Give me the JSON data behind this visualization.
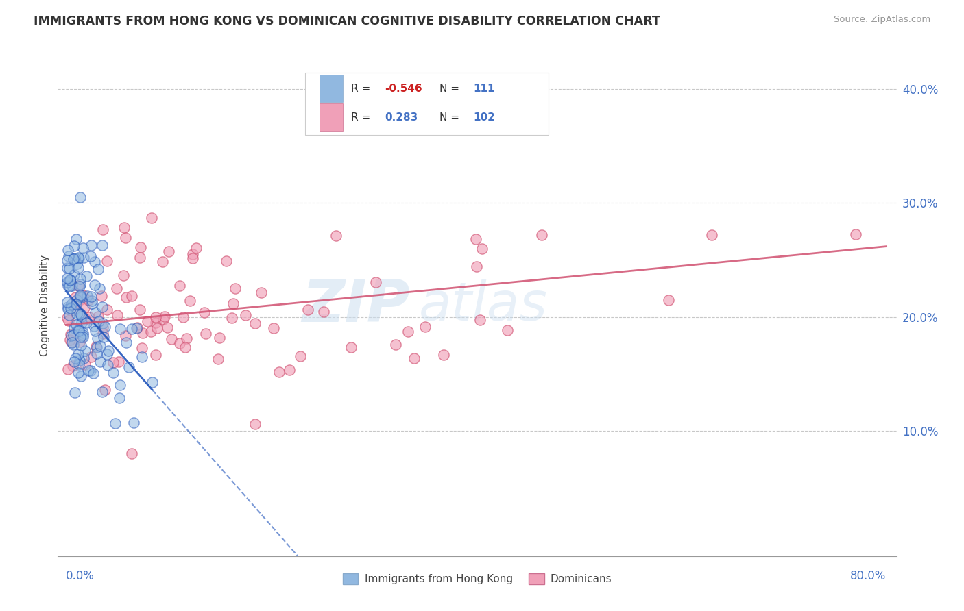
{
  "title": "IMMIGRANTS FROM HONG KONG VS DOMINICAN COGNITIVE DISABILITY CORRELATION CHART",
  "source": "Source: ZipAtlas.com",
  "ylabel": "Cognitive Disability",
  "background_color": "#ffffff",
  "grid_color": "#c8c8c8",
  "hk_color": "#91b8e0",
  "hk_line_color": "#2255bb",
  "dom_color": "#f0a0b8",
  "dom_line_color": "#d05070",
  "yticks": [
    0.1,
    0.2,
    0.3,
    0.4
  ],
  "ytick_labels": [
    "10.0%",
    "20.0%",
    "30.0%",
    "40.0%"
  ],
  "xlim": [
    0.0,
    0.8
  ],
  "ylim": [
    0.0,
    0.43
  ],
  "R_hk": -0.546,
  "N_hk": 111,
  "R_dom": 0.283,
  "N_dom": 102,
  "watermark_text": "ZIP atlas",
  "legend_label_hk": "Immigrants from Hong Kong",
  "legend_label_dom": "Dominicans"
}
